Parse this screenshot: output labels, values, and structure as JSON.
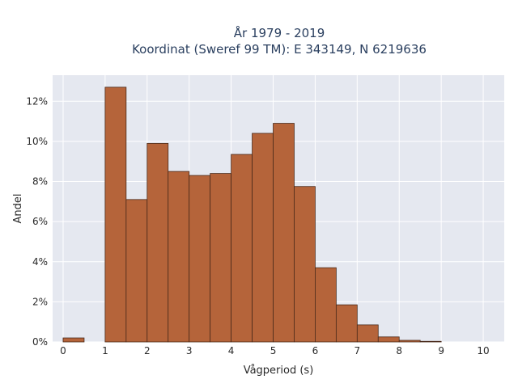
{
  "chart_data": {
    "type": "bar",
    "title_lines": [
      "År 1979 - 2019",
      "Koordinat (Sweref 99 TM): E 343149, N 6219636"
    ],
    "xlabel": "Vågperiod (s)",
    "ylabel": "Andel",
    "xlim": [
      -0.25,
      10.5
    ],
    "ylim": [
      0,
      13.3
    ],
    "x_ticks": [
      "0",
      "1",
      "2",
      "3",
      "4",
      "5",
      "6",
      "7",
      "8",
      "9",
      "10"
    ],
    "y_ticks": [
      "0%",
      "2%",
      "4%",
      "6%",
      "8%",
      "10%",
      "12%"
    ],
    "bin_width": 0.5,
    "bins": [
      0,
      0.5,
      1,
      1.5,
      2,
      2.5,
      3,
      3.5,
      4,
      4.5,
      5,
      5.5,
      6,
      6.5,
      7,
      7.5,
      8,
      8.5,
      9
    ],
    "values": [
      0.2,
      0,
      12.7,
      7.1,
      9.9,
      8.5,
      8.3,
      8.4,
      9.35,
      10.4,
      10.9,
      7.75,
      3.7,
      1.85,
      0.85,
      0.25,
      0.08,
      0.03,
      0
    ],
    "bar_color": "#b5643a",
    "bar_edge_color": "#4a2a1a",
    "plot_background": "#e5e8f0",
    "grid_color": "#ffffff",
    "grid": true
  }
}
